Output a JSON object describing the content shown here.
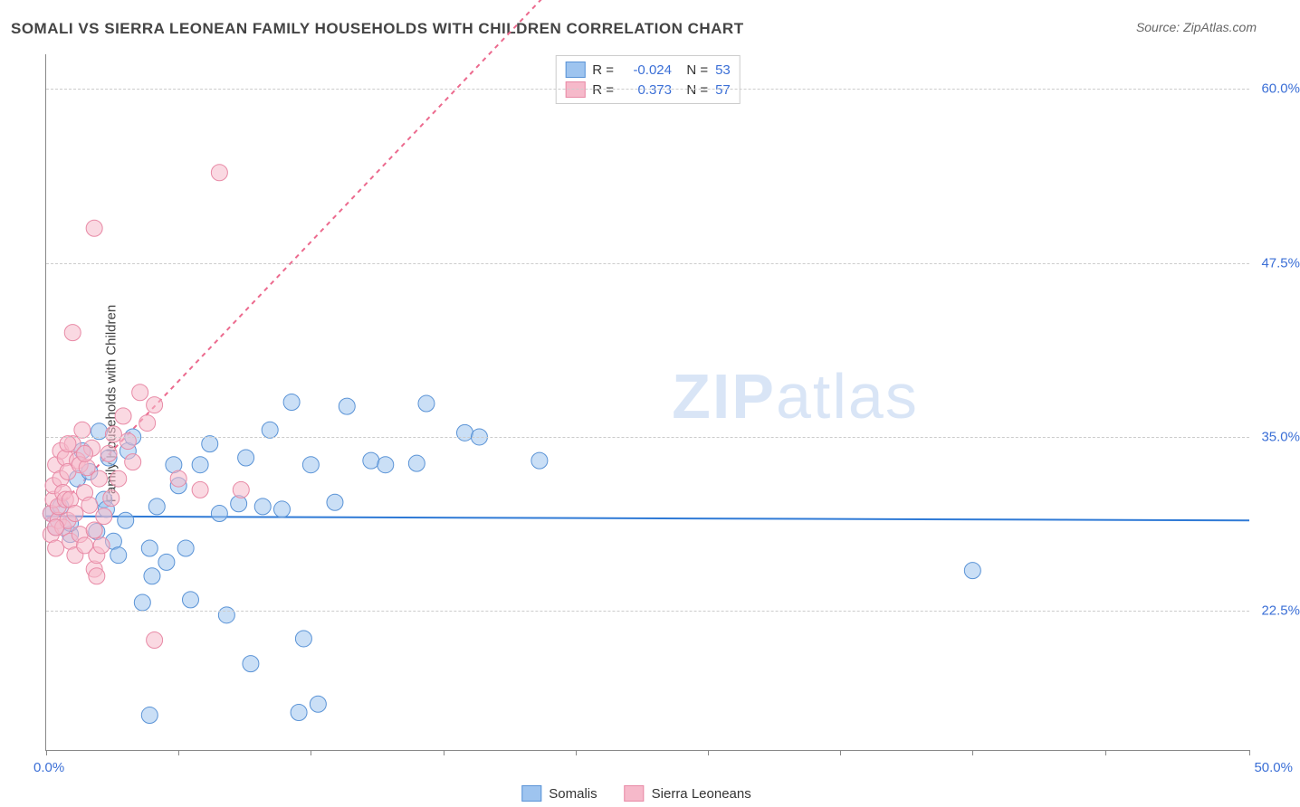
{
  "title": "SOMALI VS SIERRA LEONEAN FAMILY HOUSEHOLDS WITH CHILDREN CORRELATION CHART",
  "source_label": "Source:",
  "source_value": "ZipAtlas.com",
  "watermark_bold": "ZIP",
  "watermark_light": "atlas",
  "chart": {
    "type": "scatter",
    "y_axis_label": "Family Households with Children",
    "background_color": "#ffffff",
    "grid_color": "#cccccc",
    "axis_color": "#888888",
    "xlim": [
      0,
      50
    ],
    "ylim": [
      12.5,
      62.5
    ],
    "x_ticks": [
      0,
      5.5,
      11,
      16.5,
      22,
      27.5,
      33,
      38.5,
      44,
      50
    ],
    "x_start_label": "0.0%",
    "x_end_label": "50.0%",
    "y_gridlines": [
      22.5,
      35.0,
      47.5,
      60.0
    ],
    "y_tick_labels": [
      "22.5%",
      "35.0%",
      "47.5%",
      "60.0%"
    ],
    "marker_radius": 9,
    "marker_opacity": 0.55,
    "trend_line_width": 2,
    "series": [
      {
        "name": "Somalis",
        "fill_color": "#9ec4ef",
        "stroke_color": "#5a93d6",
        "line_color": "#2f7ad6",
        "line_dash": "none",
        "r_value": "-0.024",
        "n_value": "53",
        "trend": {
          "x1": 0,
          "y1": 29.3,
          "x2": 50,
          "y2": 29.0
        },
        "points": [
          [
            0.2,
            29.5
          ],
          [
            0.4,
            28.5
          ],
          [
            0.6,
            30
          ],
          [
            1,
            28
          ],
          [
            1.3,
            32
          ],
          [
            1.5,
            34
          ],
          [
            1.8,
            32.5
          ],
          [
            2.1,
            28.2
          ],
          [
            2.2,
            35.4
          ],
          [
            2.4,
            30.5
          ],
          [
            2.6,
            33.5
          ],
          [
            2.8,
            27.5
          ],
          [
            3,
            26.5
          ],
          [
            3.3,
            29
          ],
          [
            3.4,
            34
          ],
          [
            3.6,
            35
          ],
          [
            4,
            23.1
          ],
          [
            4.3,
            27
          ],
          [
            4.4,
            25
          ],
          [
            4.6,
            30
          ],
          [
            5,
            26
          ],
          [
            5.3,
            33
          ],
          [
            5.5,
            31.5
          ],
          [
            5.8,
            27
          ],
          [
            6,
            23.3
          ],
          [
            6.4,
            33
          ],
          [
            6.8,
            34.5
          ],
          [
            7.2,
            29.5
          ],
          [
            7.5,
            22.2
          ],
          [
            8,
            30.2
          ],
          [
            8.3,
            33.5
          ],
          [
            8.5,
            18.7
          ],
          [
            9,
            30
          ],
          [
            9.3,
            35.5
          ],
          [
            9.8,
            29.8
          ],
          [
            10.2,
            37.5
          ],
          [
            10.5,
            15.2
          ],
          [
            10.7,
            20.5
          ],
          [
            11,
            33
          ],
          [
            11.3,
            15.8
          ],
          [
            12,
            30.3
          ],
          [
            12.5,
            37.2
          ],
          [
            13.5,
            33.3
          ],
          [
            14.1,
            33
          ],
          [
            15.4,
            33.1
          ],
          [
            15.8,
            37.4
          ],
          [
            17.4,
            35.3
          ],
          [
            18,
            35
          ],
          [
            20.5,
            33.3
          ],
          [
            38.5,
            25.4
          ],
          [
            4.3,
            15.0
          ],
          [
            1.0,
            28.8
          ],
          [
            2.5,
            29.8
          ]
        ]
      },
      {
        "name": "Sierra Leoneans",
        "fill_color": "#f6b9ca",
        "stroke_color": "#e88aa6",
        "line_color": "#ec6a8e",
        "line_dash": "5,5",
        "r_value": "0.373",
        "n_value": "57",
        "trend": {
          "x1": 0,
          "y1": 29.0,
          "x2": 50,
          "y2": 120
        },
        "points": [
          [
            0.2,
            28
          ],
          [
            0.2,
            29.5
          ],
          [
            0.3,
            30.5
          ],
          [
            0.3,
            31.5
          ],
          [
            0.4,
            27
          ],
          [
            0.4,
            33
          ],
          [
            0.5,
            29
          ],
          [
            0.5,
            30
          ],
          [
            0.6,
            32
          ],
          [
            0.6,
            34
          ],
          [
            0.7,
            28.5
          ],
          [
            0.7,
            31
          ],
          [
            0.8,
            30.5
          ],
          [
            0.8,
            33.5
          ],
          [
            0.9,
            29
          ],
          [
            0.9,
            32.5
          ],
          [
            1,
            27.5
          ],
          [
            1,
            30.5
          ],
          [
            1.1,
            34.5
          ],
          [
            1.2,
            26.5
          ],
          [
            1.2,
            29.5
          ],
          [
            1.3,
            33.3
          ],
          [
            1.4,
            28
          ],
          [
            1.4,
            33
          ],
          [
            1.5,
            35.5
          ],
          [
            1.6,
            31
          ],
          [
            1.6,
            27.2
          ],
          [
            1.7,
            32.8
          ],
          [
            1.8,
            30.1
          ],
          [
            1.9,
            34.2
          ],
          [
            2,
            28.3
          ],
          [
            2,
            25.5
          ],
          [
            2.1,
            26.5
          ],
          [
            2.2,
            32
          ],
          [
            2.3,
            27.2
          ],
          [
            2.4,
            29.3
          ],
          [
            2.6,
            33.8
          ],
          [
            2.7,
            30.6
          ],
          [
            2.8,
            35.2
          ],
          [
            3,
            32
          ],
          [
            3.2,
            36.5
          ],
          [
            3.4,
            34.7
          ],
          [
            3.6,
            33.2
          ],
          [
            3.9,
            38.2
          ],
          [
            4.2,
            36
          ],
          [
            4.5,
            37.3
          ],
          [
            5.5,
            32
          ],
          [
            6.4,
            31.2
          ],
          [
            8.1,
            31.2
          ],
          [
            0.4,
            28.5
          ],
          [
            1.1,
            42.5
          ],
          [
            2.0,
            50.0
          ],
          [
            2.1,
            25.0
          ],
          [
            4.5,
            20.4
          ],
          [
            7.2,
            54.0
          ],
          [
            1.6,
            33.8
          ],
          [
            0.9,
            34.5
          ]
        ]
      }
    ],
    "bottom_legend": [
      {
        "label": "Somalis",
        "swatch_fill": "#9ec4ef",
        "swatch_border": "#5a93d6"
      },
      {
        "label": "Sierra Leoneans",
        "swatch_fill": "#f6b9ca",
        "swatch_border": "#e88aa6"
      }
    ]
  }
}
